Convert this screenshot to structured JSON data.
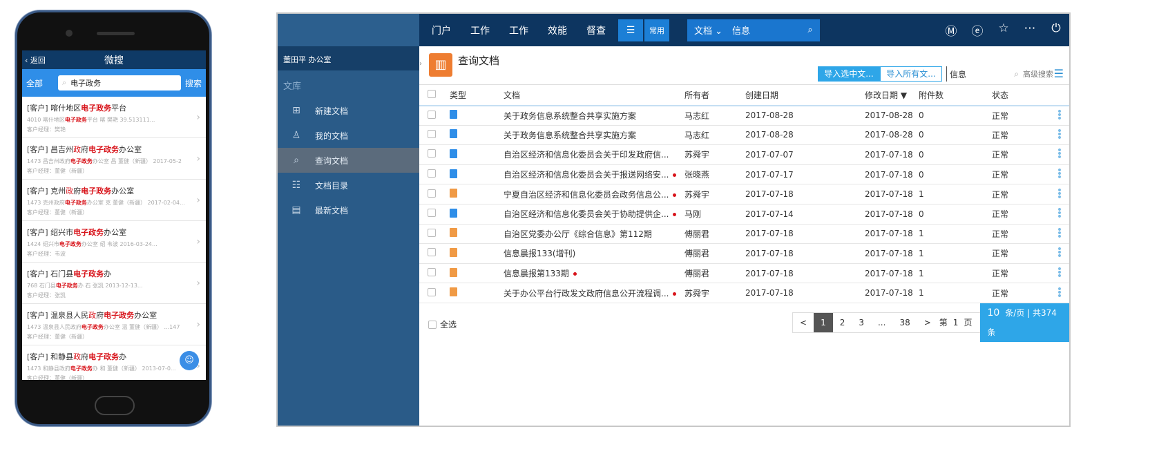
{
  "phone": {
    "back": "返回",
    "title": "微搜",
    "scope": "全部",
    "query": "电子政务",
    "search_btn": "搜索",
    "items": [
      {
        "title": [
          [
            "[客户] 喀什地区",
            ""
          ],
          [
            "电子政务",
            "hl"
          ],
          [
            "平台",
            ""
          ]
        ],
        "sub": [
          [
            "4010 喀什地区",
            ""
          ],
          [
            "电子政务",
            "hl"
          ],
          [
            "平台 喀 樊艳 39.513111...",
            ""
          ]
        ],
        "manager": "客户经理：樊艳"
      },
      {
        "title": [
          [
            "[客户] 昌吉州",
            ""
          ],
          [
            "政",
            "r"
          ],
          [
            "府",
            ""
          ],
          [
            "电子政务",
            "hl"
          ],
          [
            "办公室",
            ""
          ]
        ],
        "sub": [
          [
            "1473 昌吉州政府",
            ""
          ],
          [
            "电子政务",
            "hl"
          ],
          [
            "办公室 昌 董健（新疆） 2017-05-2",
            ""
          ]
        ],
        "manager": "客户经理：董健（新疆）"
      },
      {
        "title": [
          [
            "[客户] 克州",
            ""
          ],
          [
            "政",
            "r"
          ],
          [
            "府",
            ""
          ],
          [
            "电子政务",
            "hl"
          ],
          [
            "办公室",
            ""
          ]
        ],
        "sub": [
          [
            "1473 克州政府",
            ""
          ],
          [
            "电子政务",
            "hl"
          ],
          [
            "办公室 克 董健（新疆） 2017-02-04...",
            ""
          ]
        ],
        "manager": "客户经理：董健（新疆）"
      },
      {
        "title": [
          [
            "[客户] 绍兴市",
            ""
          ],
          [
            "电子政务",
            "hl"
          ],
          [
            "办公室",
            ""
          ]
        ],
        "sub": [
          [
            "1424 绍兴市",
            ""
          ],
          [
            "电子政务",
            "hl"
          ],
          [
            "办公室 绍 韦波 2016-03-24...",
            ""
          ]
        ],
        "manager": "客户经理：韦波"
      },
      {
        "title": [
          [
            "[客户] 石门县",
            ""
          ],
          [
            "电子政务",
            "hl"
          ],
          [
            "办",
            ""
          ]
        ],
        "sub": [
          [
            "768 石门县",
            ""
          ],
          [
            "电子政务",
            "hl"
          ],
          [
            "办 石 张凯 2013-12-13...",
            ""
          ]
        ],
        "manager": "客户经理：张凯"
      },
      {
        "title": [
          [
            "[客户] 温泉县人民",
            ""
          ],
          [
            "政",
            "r"
          ],
          [
            "府",
            ""
          ],
          [
            "电子政务",
            "hl"
          ],
          [
            "办公室",
            ""
          ]
        ],
        "sub": [
          [
            "1473 温泉县人民政府",
            ""
          ],
          [
            "电子政务",
            "hl"
          ],
          [
            "办公室 温 董健（新疆） ...147",
            ""
          ]
        ],
        "manager": "客户经理：董健（新疆）"
      },
      {
        "title": [
          [
            "[客户] 和静县",
            ""
          ],
          [
            "政",
            "r"
          ],
          [
            "府",
            ""
          ],
          [
            "电子政务",
            "hl"
          ],
          [
            "办",
            ""
          ]
        ],
        "sub": [
          [
            "1473 和静县政府",
            ""
          ],
          [
            "电子政务",
            "hl"
          ],
          [
            "办 和 董健（新疆） 2013-07-0...",
            ""
          ]
        ],
        "manager": "客户经理：董健（新疆）"
      }
    ]
  },
  "desktop": {
    "nav": [
      "门户",
      "工作",
      "工作",
      "效能",
      "督查"
    ],
    "menu_icon": "hamburger-icon",
    "common": "常用",
    "search_scope": "文档",
    "search_value": "信息",
    "top_icons": [
      "m-icon",
      "e-icon",
      "star-icon",
      "more-icon",
      "power-icon"
    ],
    "sidebar": {
      "user": "董田平  办公室",
      "section": "文库",
      "items": [
        {
          "label": "新建文档",
          "icon": "new-doc-icon"
        },
        {
          "label": "我的文档",
          "icon": "user-icon"
        },
        {
          "label": "查询文档",
          "icon": "search-icon",
          "active": true
        },
        {
          "label": "文档目录",
          "icon": "list-icon"
        },
        {
          "label": "最新文档",
          "icon": "document-icon"
        }
      ]
    },
    "page_title": "查询文档",
    "import_selected": "导入选中文...",
    "import_all": "导入所有文...",
    "filter_value": "信息",
    "advanced": "高级搜索",
    "columns": [
      "类型",
      "文档",
      "所有者",
      "创建日期",
      "修改日期 ▼",
      "附件数",
      "状态"
    ],
    "rows": [
      {
        "type": "word",
        "doc": "关于政务信息系统整合共享实施方案",
        "dot": false,
        "owner": "马志红",
        "created": "2017-08-28",
        "modified": "2017-08-28",
        "att": "0",
        "status": "正常"
      },
      {
        "type": "word",
        "doc": "关于政务信息系统整合共享实施方案",
        "dot": false,
        "owner": "马志红",
        "created": "2017-08-28",
        "modified": "2017-08-28",
        "att": "0",
        "status": "正常"
      },
      {
        "type": "word",
        "doc": "自治区经济和信息化委员会关于印发政府信...",
        "dot": false,
        "owner": "苏舜宇",
        "created": "2017-07-07",
        "modified": "2017-07-18",
        "att": "0",
        "status": "正常"
      },
      {
        "type": "word",
        "doc": "自治区经济和信息化委员会关于报送网络安...",
        "dot": true,
        "owner": "张晓燕",
        "created": "2017-07-17",
        "modified": "2017-07-18",
        "att": "0",
        "status": "正常"
      },
      {
        "type": "pdf",
        "doc": "宁夏自治区经济和信息化委员会政务信息公...",
        "dot": true,
        "owner": "苏舜宇",
        "created": "2017-07-18",
        "modified": "2017-07-18",
        "att": "1",
        "status": "正常"
      },
      {
        "type": "word",
        "doc": "自治区经济和信息化委员会关于协助提供企...",
        "dot": true,
        "owner": "马刚",
        "created": "2017-07-14",
        "modified": "2017-07-18",
        "att": "0",
        "status": "正常"
      },
      {
        "type": "pdf",
        "doc": "自治区党委办公厅《综合信息》第112期",
        "dot": false,
        "owner": "傅丽君",
        "created": "2017-07-18",
        "modified": "2017-07-18",
        "att": "1",
        "status": "正常"
      },
      {
        "type": "pdf",
        "doc": "信息晨报133(增刊)",
        "dot": false,
        "owner": "傅丽君",
        "created": "2017-07-18",
        "modified": "2017-07-18",
        "att": "1",
        "status": "正常"
      },
      {
        "type": "pdf",
        "doc": "信息晨报第133期",
        "dot": true,
        "owner": "傅丽君",
        "created": "2017-07-18",
        "modified": "2017-07-18",
        "att": "1",
        "status": "正常"
      },
      {
        "type": "pdf",
        "doc": "关于办公平台行政发文政府信息公开流程调...",
        "dot": true,
        "owner": "苏舜宇",
        "created": "2017-07-18",
        "modified": "2017-07-18",
        "att": "1",
        "status": "正常"
      }
    ],
    "select_all": "全选",
    "pager": {
      "prev": "<",
      "pages": [
        "1",
        "2",
        "3",
        "...",
        "38"
      ],
      "current": "1",
      "next": ">",
      "goto_prefix": "第",
      "goto_value": "1",
      "goto_suffix": "页",
      "page_size": "10",
      "summary": "条/页 | 共374条"
    }
  }
}
